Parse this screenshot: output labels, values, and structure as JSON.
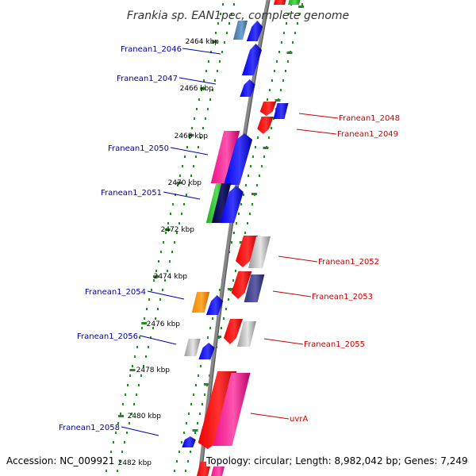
{
  "title": "Frankia sp. EAN1pec, complete genome",
  "accession": "Accession: NC_009921",
  "topology": "Topology: circular; Length: 8,982,042 bp; Genes: 7,249",
  "colors": {
    "backbone": "#888888",
    "tick": "#228B22",
    "forward_label": "#0000aa",
    "reverse_label": "#cc0000"
  },
  "kbp_ticks": [
    "2464 kbp",
    "2466 kbp",
    "2468 kbp",
    "2470 kbp",
    "2472 kbp",
    "2474 kbp",
    "2476 kbp",
    "2478 kbp",
    "2480 kbp",
    "2482 kbp"
  ],
  "gene_labels": [
    {
      "text": "Franean1_2046",
      "strand": "forward"
    },
    {
      "text": "Franean1_2047",
      "strand": "forward"
    },
    {
      "text": "Franean1_2048",
      "strand": "reverse"
    },
    {
      "text": "Franean1_2049",
      "strand": "reverse"
    },
    {
      "text": "Franean1_2050",
      "strand": "forward"
    },
    {
      "text": "Franean1_2051",
      "strand": "forward"
    },
    {
      "text": "Franean1_2052",
      "strand": "reverse"
    },
    {
      "text": "Franean1_2053",
      "strand": "reverse"
    },
    {
      "text": "Franean1_2054",
      "strand": "forward"
    },
    {
      "text": "Franean1_2056",
      "strand": "forward"
    },
    {
      "text": "Franean1_2055",
      "strand": "reverse"
    },
    {
      "text": "uvrA",
      "strand": "reverse"
    },
    {
      "text": "Franean1_2058",
      "strand": "forward"
    }
  ]
}
